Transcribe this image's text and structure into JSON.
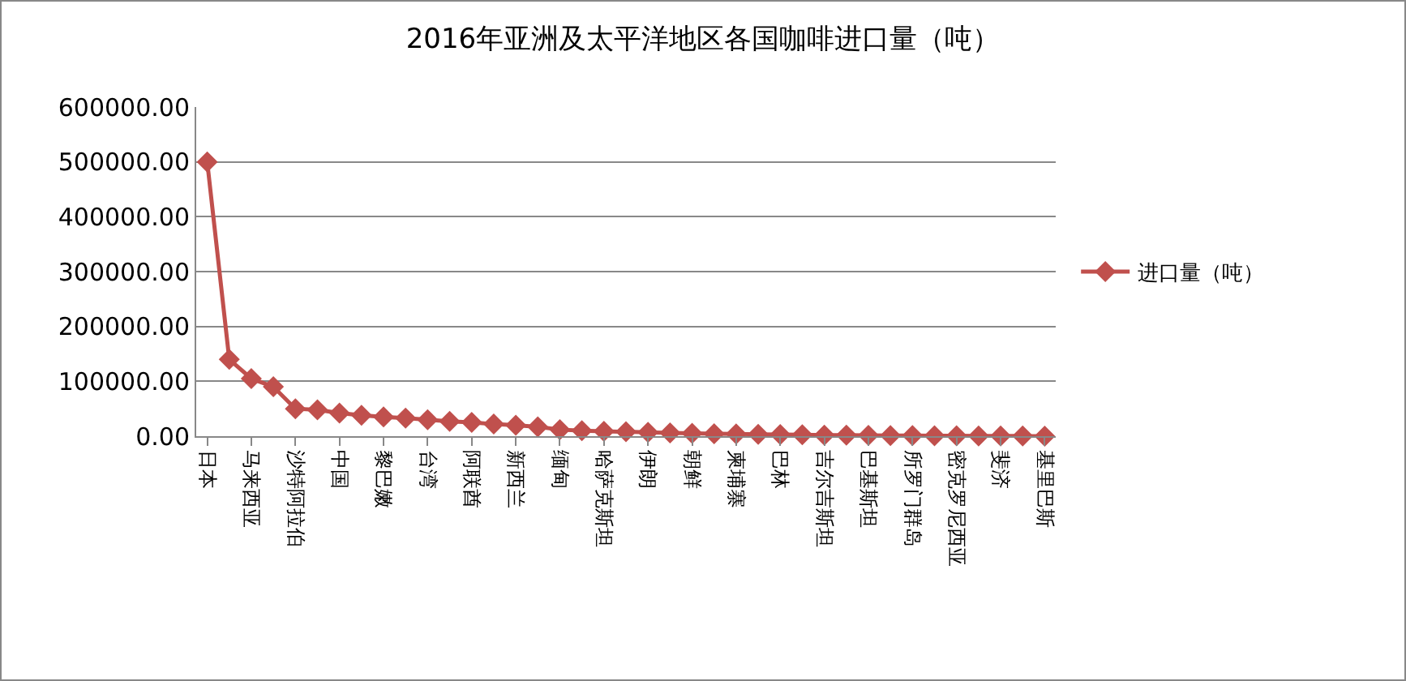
{
  "chart_data": {
    "type": "line",
    "title": "2016年亚洲及太平洋地区各国咖啡进口量（吨）",
    "categories": [
      "日本",
      null,
      "马来西亚",
      null,
      "沙特阿拉伯",
      null,
      "中国",
      null,
      "黎巴嫩",
      null,
      "台湾",
      null,
      "阿联酋",
      null,
      "新西兰",
      null,
      "缅甸",
      null,
      "哈萨克斯坦",
      null,
      "伊朗",
      null,
      "朝鲜",
      null,
      "柬埔寨",
      null,
      "巴林",
      null,
      "吉尔吉斯坦",
      null,
      "巴基斯坦",
      null,
      "所罗门群岛",
      null,
      "密克罗尼西亚",
      null,
      "斐济",
      null,
      "基里巴斯"
    ],
    "series": [
      {
        "name": "进口量（吨）",
        "color": "#c0504d",
        "values": [
          500000,
          140000,
          105000,
          90000,
          50000,
          48000,
          42000,
          38000,
          35000,
          33000,
          30000,
          27000,
          25000,
          22000,
          20000,
          17000,
          12000,
          10000,
          9000,
          8000,
          7000,
          6000,
          5000,
          4500,
          4000,
          3500,
          3000,
          2500,
          2000,
          1800,
          1500,
          1200,
          1000,
          800,
          600,
          400,
          300,
          200,
          100
        ]
      }
    ],
    "ylim": [
      0,
      600000
    ],
    "yticks": [
      {
        "value": 0,
        "label": "0.00"
      },
      {
        "value": 100000,
        "label": "100000.00"
      },
      {
        "value": 200000,
        "label": "200000.00"
      },
      {
        "value": 300000,
        "label": "300000.00"
      },
      {
        "value": 400000,
        "label": "400000.00"
      },
      {
        "value": 500000,
        "label": "500000.00"
      },
      {
        "value": 600000,
        "label": "600000.00"
      }
    ],
    "grid": "y",
    "legend": "right",
    "marker": "diamond",
    "line_style": "solid"
  }
}
